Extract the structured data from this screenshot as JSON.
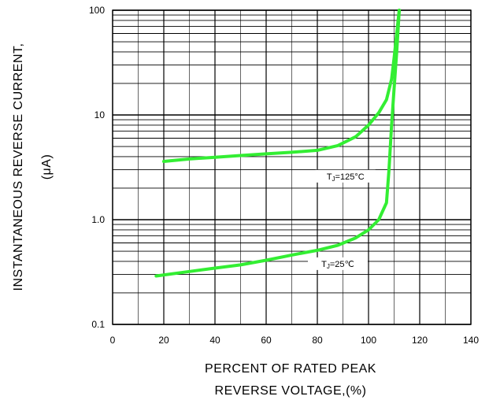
{
  "chart_data": {
    "type": "line",
    "title": "",
    "xlabel_lines": [
      "PERCENT OF RATED PEAK",
      "REVERSE VOLTAGE,(%)"
    ],
    "ylabel_lines": [
      "INSTANTANEOUS REVERSE CURRENT,",
      "(μA)"
    ],
    "xlim": [
      0,
      140
    ],
    "ylim": [
      0.1,
      100
    ],
    "y_scale": "log",
    "grid": true,
    "x_ticks": [
      {
        "value": 0,
        "label": "0"
      },
      {
        "value": 20,
        "label": "20"
      },
      {
        "value": 40,
        "label": "40"
      },
      {
        "value": 60,
        "label": "60"
      },
      {
        "value": 80,
        "label": "80"
      },
      {
        "value": 100,
        "label": "100"
      },
      {
        "value": 120,
        "label": "120"
      },
      {
        "value": 140,
        "label": "140"
      }
    ],
    "y_ticks": [
      {
        "value": 0.1,
        "label": "0.1"
      },
      {
        "value": 1,
        "label": "1.0"
      },
      {
        "value": 10,
        "label": "10"
      },
      {
        "value": 100,
        "label": "100"
      }
    ],
    "series": [
      {
        "annotation": "TJ=125°C",
        "annotation_base": "T",
        "annotation_sub": "J",
        "annotation_rest": "=125°C",
        "annotation_at": {
          "x": 91,
          "y": 2.6
        },
        "color": "#33ee33",
        "points": [
          [
            20,
            3.6
          ],
          [
            30,
            3.8
          ],
          [
            40,
            3.95
          ],
          [
            50,
            4.1
          ],
          [
            60,
            4.25
          ],
          [
            70,
            4.4
          ],
          [
            80,
            4.6
          ],
          [
            88,
            5.1
          ],
          [
            95,
            6.2
          ],
          [
            100,
            8.0
          ],
          [
            104,
            10.5
          ],
          [
            107,
            14
          ],
          [
            109,
            22
          ],
          [
            110,
            35
          ],
          [
            111,
            60
          ],
          [
            112,
            100
          ]
        ]
      },
      {
        "annotation": "TJ=25°C",
        "annotation_base": "T",
        "annotation_sub": "J",
        "annotation_rest": "=25℃",
        "annotation_at": {
          "x": 88,
          "y": 0.38
        },
        "color": "#33ee33",
        "points": [
          [
            17,
            0.29
          ],
          [
            30,
            0.32
          ],
          [
            40,
            0.345
          ],
          [
            50,
            0.37
          ],
          [
            60,
            0.41
          ],
          [
            70,
            0.46
          ],
          [
            80,
            0.51
          ],
          [
            88,
            0.57
          ],
          [
            95,
            0.67
          ],
          [
            100,
            0.8
          ],
          [
            104,
            1.0
          ],
          [
            107,
            1.45
          ],
          [
            108,
            3.0
          ],
          [
            109,
            8.0
          ],
          [
            110,
            18
          ],
          [
            111,
            40
          ],
          [
            112,
            100
          ]
        ]
      }
    ]
  }
}
